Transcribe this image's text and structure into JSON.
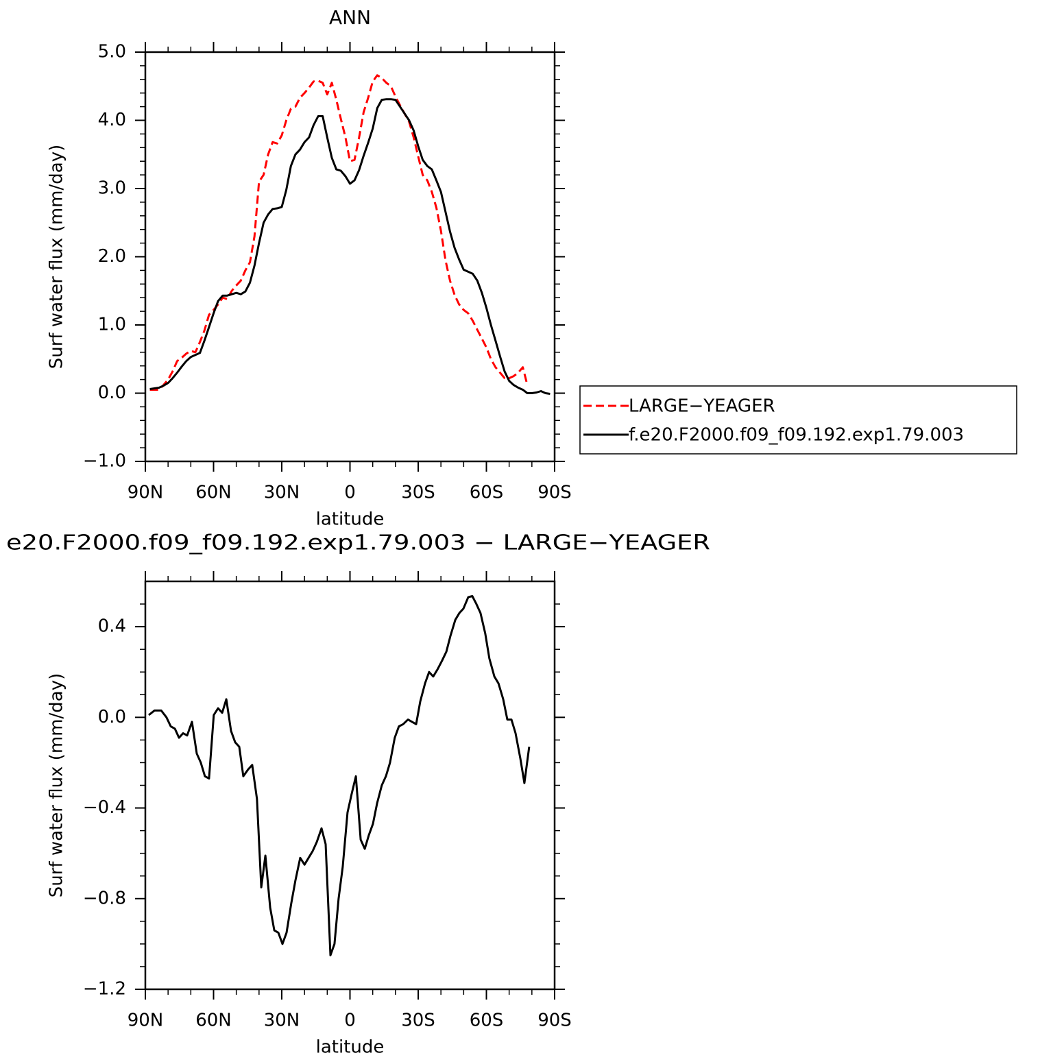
{
  "chart_data": [
    {
      "type": "line",
      "title": "ANN",
      "xlabel": "latitude",
      "ylabel": "Surf water flux (mm/day)",
      "xlim": [
        90,
        -90
      ],
      "xticks": [
        {
          "value": 90,
          "label": "90N"
        },
        {
          "value": 60,
          "label": "60N"
        },
        {
          "value": 30,
          "label": "30N"
        },
        0,
        {
          "value": -30,
          "label": "30S"
        },
        {
          "value": -60,
          "label": "60S"
        },
        {
          "value": -90,
          "label": "90S"
        }
      ],
      "xminorticks": [
        80,
        70,
        50,
        40,
        20,
        10,
        -10,
        -20,
        -40,
        -50,
        -70,
        -80
      ],
      "ylim": [
        -1,
        5
      ],
      "yticks": [
        {
          "value": 5,
          "label": "5.0"
        },
        {
          "value": 4,
          "label": "4.0"
        },
        {
          "value": 3,
          "label": "3.0"
        },
        {
          "value": 2,
          "label": "2.0"
        },
        {
          "value": 1,
          "label": "1.0"
        },
        {
          "value": 0,
          "label": "0.0"
        },
        {
          "value": -1,
          "label": "−1.0"
        }
      ],
      "yminorticks": [
        4.8,
        4.6,
        4.4,
        4.2,
        3.8,
        3.6,
        3.4,
        3.2,
        2.8,
        2.6,
        2.4,
        2.2,
        1.8,
        1.6,
        1.4,
        1.2,
        0.8,
        0.6,
        0.4,
        0.2,
        -0.2,
        -0.4,
        -0.6,
        -0.8
      ],
      "legend": "right",
      "x": [
        88,
        86,
        84,
        82,
        80,
        78,
        76,
        74,
        72,
        70,
        68,
        66,
        64,
        62,
        60,
        58,
        56,
        54,
        52,
        50,
        48,
        46,
        44,
        42,
        40,
        38,
        36,
        34,
        32,
        30,
        28,
        26,
        24,
        22,
        20,
        18,
        16,
        14,
        12,
        10,
        8,
        6,
        4,
        2,
        0,
        -2,
        -4,
        -6,
        -8,
        -10,
        -12,
        -14,
        -16,
        -18,
        -20,
        -22,
        -24,
        -26,
        -28,
        -30,
        -32,
        -34,
        -36,
        -38,
        -40,
        -42,
        -44,
        -46,
        -48,
        -50,
        -52,
        -54,
        -56,
        -58,
        -60,
        -62,
        -64,
        -66,
        -68,
        -70,
        -72,
        -74,
        -76,
        -78,
        -80,
        -82,
        -84,
        -86,
        -88
      ],
      "series": [
        {
          "name": "LARGE−YEAGER",
          "color": "#ff0000",
          "dash": true,
          "values": [
            0.05,
            0.05,
            0.05,
            0.12,
            0.2,
            0.32,
            0.47,
            0.52,
            0.58,
            0.62,
            0.6,
            0.75,
            0.92,
            1.15,
            1.22,
            1.3,
            1.4,
            1.38,
            1.5,
            1.58,
            1.65,
            1.8,
            1.92,
            2.3,
            3.1,
            3.2,
            3.5,
            3.68,
            3.66,
            3.78,
            4.0,
            4.17,
            4.2,
            4.33,
            4.4,
            4.48,
            4.57,
            4.58,
            4.55,
            4.38,
            4.55,
            4.3,
            4.02,
            3.75,
            3.4,
            3.42,
            3.75,
            4.12,
            4.33,
            4.57,
            4.66,
            4.62,
            4.55,
            4.5,
            4.35,
            4.22,
            4.1,
            3.98,
            3.75,
            3.47,
            3.2,
            3.12,
            2.95,
            2.72,
            2.38,
            1.95,
            1.65,
            1.44,
            1.3,
            1.22,
            1.17,
            1.06,
            0.93,
            0.8,
            0.67,
            0.5,
            0.38,
            0.3,
            0.22,
            0.22,
            0.25,
            0.3,
            0.38,
            0.12,
            null,
            null,
            null,
            null,
            null
          ]
        },
        {
          "name": "f.e20.F2000.f09_f09.192.exp1.79.003",
          "color": "#000000",
          "dash": false,
          "values": [
            0.06,
            0.07,
            0.08,
            0.11,
            0.15,
            0.22,
            0.3,
            0.39,
            0.47,
            0.53,
            0.56,
            0.59,
            0.77,
            0.97,
            1.17,
            1.35,
            1.43,
            1.43,
            1.45,
            1.47,
            1.45,
            1.49,
            1.62,
            1.87,
            2.2,
            2.5,
            2.62,
            2.7,
            2.71,
            2.73,
            2.98,
            3.33,
            3.5,
            3.57,
            3.68,
            3.75,
            3.93,
            4.06,
            4.06,
            3.75,
            3.45,
            3.28,
            3.26,
            3.18,
            3.07,
            3.12,
            3.27,
            3.48,
            3.67,
            3.88,
            4.18,
            4.3,
            4.31,
            4.31,
            4.3,
            4.2,
            4.1,
            4.0,
            3.85,
            3.62,
            3.42,
            3.33,
            3.28,
            3.12,
            2.95,
            2.66,
            2.37,
            2.13,
            1.96,
            1.81,
            1.78,
            1.75,
            1.65,
            1.47,
            1.25,
            1.0,
            0.77,
            0.54,
            0.32,
            0.18,
            0.12,
            0.08,
            0.05,
            0.0,
            0.0,
            0.01,
            0.03,
            0.0,
            -0.01
          ]
        }
      ]
    },
    {
      "type": "line",
      "title": "e20.F2000.f09_f09.192.exp1.79.003 − LARGE−YEAGER",
      "xlabel": "latitude",
      "ylabel": "Surf water flux (mm/day)",
      "xlim": [
        90,
        -90
      ],
      "xticks": [
        {
          "value": 90,
          "label": "90N"
        },
        {
          "value": 60,
          "label": "60N"
        },
        {
          "value": 30,
          "label": "30N"
        },
        0,
        {
          "value": -30,
          "label": "30S"
        },
        {
          "value": -60,
          "label": "60S"
        },
        {
          "value": -90,
          "label": "90S"
        }
      ],
      "xminorticks": [
        80,
        70,
        50,
        40,
        20,
        10,
        -10,
        -20,
        -40,
        -50,
        -70,
        -80
      ],
      "ylim": [
        -1.2,
        0.6
      ],
      "yticks": [
        0.4,
        {
          "value": 0,
          "label": "0.0"
        },
        {
          "value": -0.4,
          "label": "−0.4"
        },
        {
          "value": -0.8,
          "label": "−0.8"
        },
        {
          "value": -1.2,
          "label": "−1.2"
        }
      ],
      "yminorticks": [
        0.5,
        0.3,
        0.2,
        0.1,
        -0.1,
        -0.2,
        -0.3,
        -0.5,
        -0.6,
        -0.7,
        -0.9,
        -1.0,
        -1.1
      ],
      "color": "#000000",
      "x": [
        88.5,
        86,
        83,
        80.7,
        78.8,
        77,
        75.2,
        73.4,
        71.6,
        69.5,
        67.4,
        65.6,
        63.8,
        62,
        59.9,
        58,
        56.2,
        54.4,
        52.3,
        50.5,
        48.7,
        46.9,
        44.8,
        43,
        40.9,
        39,
        37.2,
        35.1,
        33.3,
        31.5,
        29.7,
        27.9,
        25.8,
        24,
        21.9,
        20,
        18.2,
        16.4,
        14.6,
        12.5,
        10.7,
        8.6,
        6.8,
        5,
        3.2,
        1.1,
        -0.7,
        -2.6,
        -4.7,
        -6.5,
        -8.3,
        -10.1,
        -11.9,
        -14,
        -15.8,
        -17.6,
        -19.7,
        -21.5,
        -23.4,
        -25.5,
        -27.3,
        -29.1,
        -30.9,
        -33,
        -34.8,
        -36.6,
        -38.4,
        -40.5,
        -42.4,
        -44.2,
        -46.3,
        -48.1,
        -49.9,
        -52,
        -53.8,
        -55.6,
        -57.4,
        -59.5,
        -61.3,
        -63.5,
        -65.3,
        -67.4,
        -69.2,
        -71,
        -72.8,
        -74.9,
        -76.7,
        -78.8
      ],
      "values": [
        0.01,
        0.03,
        0.03,
        0.0,
        -0.04,
        -0.05,
        -0.09,
        -0.07,
        -0.08,
        -0.02,
        -0.16,
        -0.2,
        -0.26,
        -0.27,
        0.01,
        0.04,
        0.02,
        0.08,
        -0.06,
        -0.11,
        -0.13,
        -0.26,
        -0.23,
        -0.21,
        -0.36,
        -0.75,
        -0.61,
        -0.84,
        -0.94,
        -0.95,
        -1.0,
        -0.95,
        -0.82,
        -0.72,
        -0.62,
        -0.65,
        -0.62,
        -0.59,
        -0.55,
        -0.49,
        -0.56,
        -1.05,
        -1.0,
        -0.8,
        -0.66,
        -0.42,
        -0.34,
        -0.26,
        -0.54,
        -0.58,
        -0.52,
        -0.47,
        -0.38,
        -0.3,
        -0.26,
        -0.2,
        -0.09,
        -0.04,
        -0.03,
        -0.01,
        -0.02,
        -0.03,
        0.07,
        0.15,
        0.2,
        0.18,
        0.21,
        0.25,
        0.29,
        0.36,
        0.43,
        0.46,
        0.48,
        0.53,
        0.535,
        0.5,
        0.46,
        0.37,
        0.26,
        0.18,
        0.15,
        0.08,
        -0.01,
        -0.01,
        -0.07,
        -0.18,
        -0.29,
        -0.13
      ]
    }
  ]
}
